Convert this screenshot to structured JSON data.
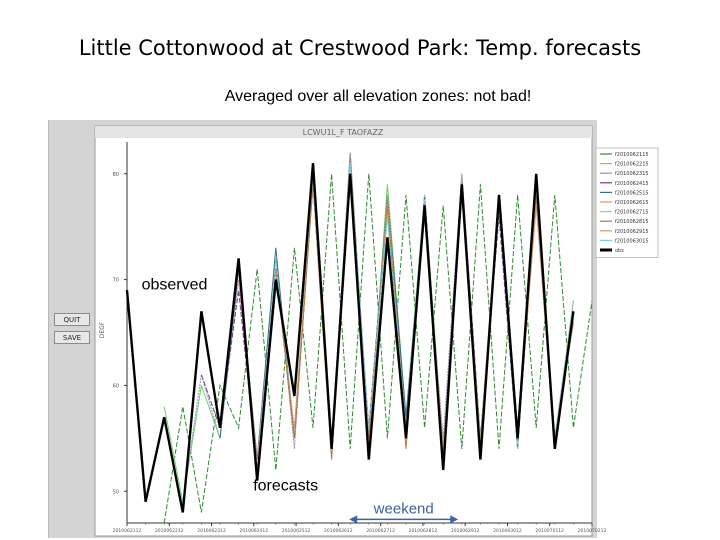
{
  "slide": {
    "title": "Little Cottonwood at Crestwood Park:  Temp. forecasts",
    "subtitle": "Averaged over all elevation zones:  not bad!"
  },
  "app": {
    "quit_label": "QUIT",
    "save_label": "SAVE",
    "y_axis_label": "DEGF"
  },
  "chart_data": {
    "type": "line",
    "title": "LCWU1L_F TAOFAZZ",
    "ylim": [
      47,
      83
    ],
    "xlim": [
      0,
      25
    ],
    "yticks": [
      50,
      60,
      70,
      80
    ],
    "xtick_labels": [
      "2010062112",
      "2010062212",
      "2010062312",
      "2010062412",
      "2010062512",
      "2010062612",
      "2010062712",
      "2010062812",
      "2010062912",
      "2010063012",
      "2010070112",
      "2010070212"
    ],
    "grid": false,
    "legend_position": "right",
    "legend_entries": [
      "f2010062115",
      "f2010062215",
      "f2010062315",
      "f2010062415",
      "f2010062515",
      "f2010062615",
      "f2010062715",
      "f2010062815",
      "f2010062915",
      "f2010063015",
      "obs"
    ],
    "series_colors": [
      "#2e8b2e",
      "#6cd46c",
      "#9a8ac8",
      "#7a3e7a",
      "#3a6a8a",
      "#e68a7a",
      "#6ad8d8",
      "#b87838",
      "#c8a070",
      "#7ec8e8",
      "#000000"
    ],
    "observed": [
      69,
      49,
      57,
      48,
      67,
      56,
      72,
      51,
      70,
      59,
      81,
      54,
      80,
      53,
      74,
      55,
      77,
      52,
      79,
      53,
      78,
      55,
      80,
      54,
      67
    ],
    "series": [
      {
        "name": "f2010062115",
        "start": 2,
        "values": [
          47,
          58,
          48,
          60,
          56,
          71,
          52,
          73,
          56,
          80,
          54,
          80,
          55,
          78,
          56,
          77,
          54,
          79,
          54,
          78,
          56,
          78,
          56,
          68
        ]
      },
      {
        "name": "f2010062215",
        "start": 2,
        "values": [
          58,
          49,
          60,
          55,
          71,
          53,
          72,
          55,
          79,
          54,
          81,
          54,
          79,
          57,
          78,
          54,
          79,
          54,
          78,
          56,
          78,
          55,
          68
        ]
      },
      {
        "name": "f2010062315",
        "start": 3,
        "values": [
          49,
          61,
          55,
          70,
          52,
          72,
          54,
          80,
          55,
          81,
          53,
          78,
          56,
          76,
          55,
          80,
          55,
          77,
          54,
          79,
          54,
          67
        ]
      },
      {
        "name": "f2010062415",
        "start": 4,
        "values": [
          61,
          56,
          69,
          52,
          71,
          55,
          79,
          54,
          80,
          56,
          77,
          55,
          78,
          53,
          80,
          55,
          76,
          54,
          78,
          55,
          66
        ]
      },
      {
        "name": "f2010062515",
        "start": 5,
        "values": [
          55,
          71,
          53,
          73,
          55,
          80,
          54,
          82,
          55,
          78,
          57,
          77,
          53,
          79,
          54,
          77,
          56,
          78,
          54,
          67
        ]
      },
      {
        "name": "f2010062615",
        "start": 6,
        "values": [
          70,
          53,
          71,
          56,
          79,
          55,
          80,
          54,
          77,
          55,
          77,
          54,
          78,
          54,
          78,
          55,
          77,
          55,
          68
        ]
      },
      {
        "name": "f2010062715",
        "start": 7,
        "values": [
          52,
          72,
          55,
          80,
          54,
          81,
          55,
          76,
          56,
          78,
          52,
          79,
          55,
          77,
          54,
          79,
          54,
          67
        ]
      },
      {
        "name": "f2010062815",
        "start": 8,
        "values": [
          71,
          55,
          79,
          53,
          80,
          55,
          77,
          54,
          77,
          53,
          80,
          54,
          78,
          55,
          78,
          55,
          66
        ]
      },
      {
        "name": "f2010062915",
        "start": 9,
        "values": [
          56,
          80,
          54,
          82,
          54,
          78,
          55,
          76,
          54,
          79,
          55,
          78,
          55,
          77,
          54,
          67
        ]
      },
      {
        "name": "f2010063015",
        "start": 10,
        "values": [
          79,
          55,
          81,
          56,
          76,
          55,
          77,
          53,
          80,
          54,
          77,
          56,
          79,
          55,
          68
        ]
      }
    ],
    "annotations": [
      {
        "text": "observed",
        "x": 1,
        "y": 70
      },
      {
        "text": "forecasts",
        "x": 7,
        "y": 51
      },
      {
        "text": "weekend",
        "x": 12,
        "y": 48,
        "arrow": true
      }
    ]
  }
}
